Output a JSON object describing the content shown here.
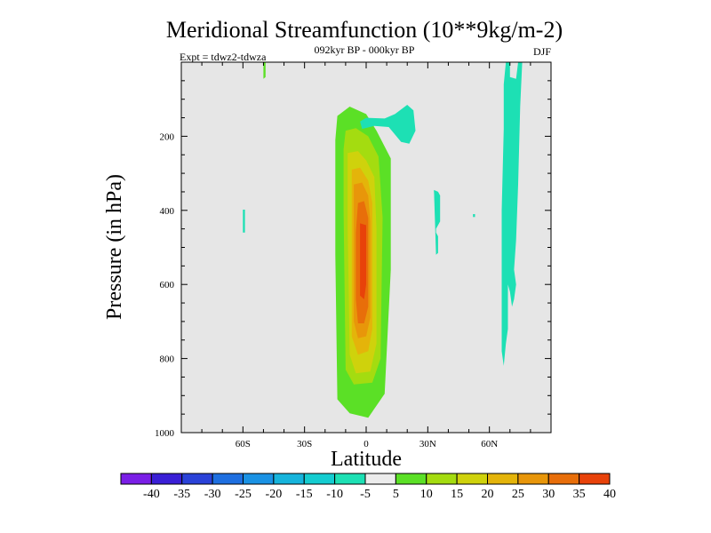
{
  "chart_data": {
    "type": "contour",
    "title": "Meridional Streamfunction (10**9kg/m-2)",
    "subtitle_center": "092kyr BP - 000kyr BP",
    "subtitle_left": "Expt = tdwz2-tdwza",
    "subtitle_right": "DJF",
    "xlabel": "Latitude",
    "ylabel": "Pressure (in hPa)",
    "xlim": [
      -90,
      90
    ],
    "ylim": [
      1000,
      0
    ],
    "xticks": [
      -60,
      -30,
      0,
      30,
      60
    ],
    "xtick_labels": [
      "60S",
      "30S",
      "0",
      "30N",
      "60N"
    ],
    "yticks": [
      200,
      400,
      600,
      800,
      1000
    ],
    "ytick_labels": [
      "200",
      "400",
      "600",
      "800",
      "1000"
    ],
    "background_color": "#e6e6e6",
    "contour_levels": [
      -40,
      -35,
      -30,
      -25,
      -20,
      -15,
      -10,
      -5,
      5,
      10,
      15,
      20,
      25,
      30,
      35,
      40
    ],
    "colorbar_labels": [
      "-40",
      "-35",
      "-30",
      "-25",
      "-20",
      "-15",
      "-10",
      "-5",
      "5",
      "10",
      "15",
      "20",
      "25",
      "30",
      "35",
      "40"
    ],
    "colorbar_colors": [
      "#7a1ee6",
      "#3a1fd6",
      "#2a42d8",
      "#1e6fe0",
      "#1a92e4",
      "#16b4dc",
      "#14ccd0",
      "#1de0b4",
      "#ececec",
      "#5be026",
      "#a4dc10",
      "#cfd20c",
      "#e4b40a",
      "#e8960a",
      "#e86e0a",
      "#e8420a"
    ],
    "features": [
      {
        "kind": "positive_cell",
        "center_lat": -2,
        "peak_pressure": 500,
        "peak_value": 35,
        "shells": [
          {
            "level": 5,
            "color": "#5be026",
            "outline": [
              [
                -14,
                145
              ],
              [
                -8,
                120
              ],
              [
                0,
                140
              ],
              [
                5,
                185
              ],
              [
                12,
                260
              ],
              [
                12,
                560
              ],
              [
                9,
                895
              ],
              [
                1,
                960
              ],
              [
                -8,
                948
              ],
              [
                -14,
                910
              ],
              [
                -15,
                520
              ],
              [
                -15,
                210
              ]
            ]
          },
          {
            "level": 10,
            "color": "#a4dc10",
            "outline": [
              [
                -10,
                185
              ],
              [
                -5,
                178
              ],
              [
                1,
                200
              ],
              [
                6,
                255
              ],
              [
                8,
                420
              ],
              [
                7,
                800
              ],
              [
                3,
                865
              ],
              [
                -6,
                870
              ],
              [
                -10,
                830
              ],
              [
                -11,
                400
              ],
              [
                -11,
                235
              ]
            ]
          },
          {
            "level": 15,
            "color": "#cfd20c",
            "outline": [
              [
                -9,
                245
              ],
              [
                -4,
                240
              ],
              [
                0,
                265
              ],
              [
                4,
                310
              ],
              [
                5,
                450
              ],
              [
                5,
                760
              ],
              [
                2,
                835
              ],
              [
                -5,
                840
              ],
              [
                -8,
                790
              ],
              [
                -9,
                450
              ]
            ]
          },
          {
            "level": 20,
            "color": "#e4b40a",
            "outline": [
              [
                -7,
                290
              ],
              [
                -3,
                285
              ],
              [
                1,
                320
              ],
              [
                3,
                380
              ],
              [
                3,
                720
              ],
              [
                1,
                780
              ],
              [
                -4,
                790
              ],
              [
                -7,
                740
              ],
              [
                -7,
                420
              ]
            ]
          },
          {
            "level": 25,
            "color": "#e8960a",
            "outline": [
              [
                -6,
                330
              ],
              [
                -2,
                325
              ],
              [
                1,
                360
              ],
              [
                2,
                430
              ],
              [
                2,
                690
              ],
              [
                0,
                740
              ],
              [
                -4,
                745
              ],
              [
                -6,
                700
              ],
              [
                -6,
                450
              ]
            ]
          },
          {
            "level": 30,
            "color": "#e86e0a",
            "outline": [
              [
                -4,
                380
              ],
              [
                -1,
                375
              ],
              [
                1,
                420
              ],
              [
                1,
                660
              ],
              [
                -1,
                705
              ],
              [
                -4,
                705
              ],
              [
                -5,
                640
              ],
              [
                -5,
                460
              ]
            ]
          },
          {
            "level": 35,
            "color": "#e8420a",
            "outline": [
              [
                -3,
                435
              ],
              [
                0,
                440
              ],
              [
                0,
                600
              ],
              [
                -1,
                640
              ],
              [
                -3,
                630
              ],
              [
                -3,
                500
              ]
            ]
          }
        ]
      },
      {
        "kind": "negative_patch",
        "level": -5,
        "color": "#1de0b4",
        "outline": [
          [
            -3,
            160
          ],
          [
            0,
            150
          ],
          [
            9,
            152
          ],
          [
            14,
            140
          ],
          [
            20,
            115
          ],
          [
            23,
            130
          ],
          [
            24,
            185
          ],
          [
            21,
            220
          ],
          [
            17,
            215
          ],
          [
            11,
            175
          ],
          [
            4,
            172
          ],
          [
            -2,
            180
          ]
        ]
      },
      {
        "kind": "negative_patch",
        "level": -5,
        "color": "#1de0b4",
        "outline": [
          [
            33,
            345
          ],
          [
            34,
            380
          ],
          [
            34,
            460
          ],
          [
            35,
            470
          ],
          [
            35,
            515
          ],
          [
            34,
            520
          ]
        ]
      },
      {
        "kind": "negative_patch",
        "level": -5,
        "color": "#1de0b4",
        "outline": [
          [
            33,
            345
          ],
          [
            35,
            350
          ],
          [
            36,
            360
          ],
          [
            36,
            430
          ],
          [
            34,
            450
          ]
        ]
      },
      {
        "kind": "negative_patch",
        "level": -5,
        "color": "#1de0b4",
        "outline": [
          [
            -60,
            398
          ],
          [
            -59,
            398
          ],
          [
            -59,
            460
          ],
          [
            -60,
            460
          ]
        ]
      },
      {
        "kind": "negative_patch",
        "level": -5,
        "color": "#1de0b4",
        "outline": [
          [
            52,
            410
          ],
          [
            53,
            410
          ],
          [
            53,
            418
          ],
          [
            52,
            418
          ]
        ]
      },
      {
        "kind": "negative_strip",
        "level": -5,
        "color": "#1de0b4",
        "outline": [
          [
            68,
            0
          ],
          [
            70,
            0
          ],
          [
            70,
            40
          ],
          [
            73,
            45
          ],
          [
            74,
            0
          ],
          [
            76,
            0
          ],
          [
            75,
            120
          ],
          [
            74,
            330
          ],
          [
            73,
            480
          ],
          [
            72,
            560
          ],
          [
            73,
            600
          ],
          [
            72,
            640
          ],
          [
            71,
            660
          ],
          [
            70,
            620
          ],
          [
            69,
            600
          ],
          [
            69,
            720
          ],
          [
            68,
            760
          ],
          [
            67,
            820
          ],
          [
            66,
            780
          ],
          [
            66,
            620
          ],
          [
            66,
            400
          ],
          [
            67,
            180
          ],
          [
            67,
            60
          ]
        ]
      },
      {
        "kind": "positive_patch",
        "level": 5,
        "color": "#5be026",
        "outline": [
          [
            -50,
            0
          ],
          [
            -49,
            0
          ],
          [
            -49,
            40
          ],
          [
            -50,
            45
          ]
        ]
      }
    ]
  }
}
